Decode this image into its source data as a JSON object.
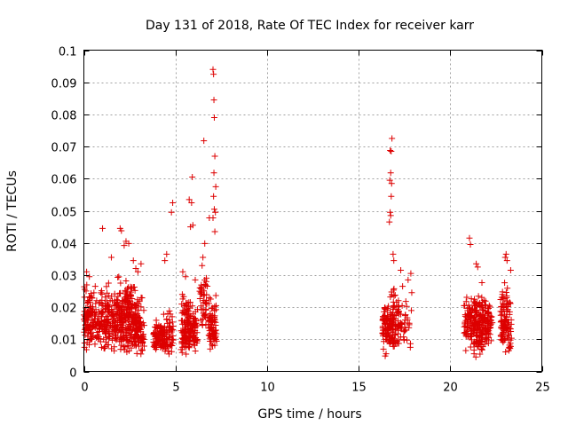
{
  "chart_data": {
    "type": "scatter",
    "title": "Day 131 of 2018, Rate Of TEC Index for receiver karr",
    "xlabel": "GPS time / hours",
    "ylabel": "ROTI / TECUs",
    "xlim": [
      0,
      25
    ],
    "ylim": [
      0,
      0.1
    ],
    "xticks": [
      0,
      5,
      10,
      15,
      20,
      25
    ],
    "yticks": [
      0,
      0.01,
      0.02,
      0.03,
      0.04,
      0.05,
      0.06,
      0.07,
      0.08,
      0.09,
      0.1
    ],
    "grid": true,
    "marker": "plus",
    "color": "#dd0000",
    "series": [
      {
        "name": "ROTI",
        "description": "Dense clusters of ROTI samples during 0-7.2 h, 16.3-17.9 h and 20.7-23.3 h UT; values mostly 0.005-0.03 TECU/min",
        "points": [
          [
            7.05,
            0.094
          ],
          [
            7.08,
            0.0925
          ],
          [
            7.1,
            0.0845
          ],
          [
            7.12,
            0.079
          ],
          [
            6.55,
            0.0718
          ],
          [
            7.15,
            0.067
          ],
          [
            5.92,
            0.0605
          ],
          [
            7.1,
            0.0618
          ],
          [
            7.2,
            0.0575
          ],
          [
            7.08,
            0.0545
          ],
          [
            5.75,
            0.0535
          ],
          [
            5.88,
            0.0525
          ],
          [
            4.85,
            0.0525
          ],
          [
            4.78,
            0.0495
          ],
          [
            7.12,
            0.0505
          ],
          [
            7.18,
            0.0495
          ],
          [
            7.05,
            0.0478
          ],
          [
            6.85,
            0.0478
          ],
          [
            5.95,
            0.0455
          ],
          [
            5.82,
            0.045
          ],
          [
            1.02,
            0.0445
          ],
          [
            1.98,
            0.0445
          ],
          [
            2.05,
            0.0438
          ],
          [
            7.15,
            0.0435
          ],
          [
            6.6,
            0.0398
          ],
          [
            2.3,
            0.0405
          ],
          [
            2.45,
            0.0398
          ],
          [
            2.2,
            0.0392
          ],
          [
            4.52,
            0.0365
          ],
          [
            4.42,
            0.0345
          ],
          [
            6.5,
            0.0355
          ],
          [
            1.5,
            0.0355
          ],
          [
            2.7,
            0.0345
          ],
          [
            3.12,
            0.0335
          ],
          [
            0.15,
            0.031
          ],
          [
            0.3,
            0.0295
          ],
          [
            0.62,
            0.0265
          ],
          [
            1.35,
            0.0275
          ],
          [
            2.95,
            0.031
          ],
          [
            5.55,
            0.0295
          ],
          [
            6.08,
            0.0285
          ],
          [
            5.4,
            0.031
          ],
          [
            16.82,
            0.0725
          ],
          [
            16.72,
            0.0688
          ],
          [
            16.78,
            0.0685
          ],
          [
            16.75,
            0.0618
          ],
          [
            16.7,
            0.0595
          ],
          [
            16.8,
            0.0585
          ],
          [
            16.78,
            0.0545
          ],
          [
            16.72,
            0.0495
          ],
          [
            16.75,
            0.0485
          ],
          [
            16.68,
            0.0465
          ],
          [
            16.88,
            0.0365
          ],
          [
            16.92,
            0.0345
          ],
          [
            17.3,
            0.0315
          ],
          [
            17.85,
            0.0305
          ],
          [
            17.7,
            0.0285
          ],
          [
            17.4,
            0.0265
          ],
          [
            17.9,
            0.0245
          ],
          [
            16.5,
            0.0055
          ],
          [
            16.45,
            0.0048
          ],
          [
            17.82,
            0.0075
          ],
          [
            21.05,
            0.0415
          ],
          [
            21.1,
            0.0395
          ],
          [
            21.42,
            0.0335
          ],
          [
            21.5,
            0.0325
          ],
          [
            23.05,
            0.0365
          ],
          [
            23.1,
            0.0345
          ],
          [
            23.0,
            0.0355
          ],
          [
            23.3,
            0.0315
          ],
          [
            21.3,
            0.0055
          ],
          [
            21.4,
            0.0045
          ],
          [
            20.85,
            0.0065
          ],
          [
            23.2,
            0.0065
          ]
        ],
        "clusters": [
          {
            "x_range": [
              0.0,
              0.45
            ],
            "y_range": [
              0.006,
              0.031
            ],
            "count": 90
          },
          {
            "x_range": [
              0.45,
              1.05
            ],
            "y_range": [
              0.006,
              0.029
            ],
            "count": 80
          },
          {
            "x_range": [
              1.05,
              1.7
            ],
            "y_range": [
              0.006,
              0.029
            ],
            "count": 100
          },
          {
            "x_range": [
              1.7,
              2.3
            ],
            "y_range": [
              0.006,
              0.034
            ],
            "count": 130
          },
          {
            "x_range": [
              2.3,
              2.85
            ],
            "y_range": [
              0.004,
              0.036
            ],
            "count": 140
          },
          {
            "x_range": [
              2.85,
              3.3
            ],
            "y_range": [
              0.004,
              0.026
            ],
            "count": 80
          },
          {
            "x_range": [
              3.8,
              4.25
            ],
            "y_range": [
              0.006,
              0.018
            ],
            "count": 70
          },
          {
            "x_range": [
              4.25,
              4.9
            ],
            "y_range": [
              0.005,
              0.022
            ],
            "count": 80
          },
          {
            "x_range": [
              5.3,
              5.8
            ],
            "y_range": [
              0.004,
              0.029
            ],
            "count": 110
          },
          {
            "x_range": [
              5.8,
              6.2
            ],
            "y_range": [
              0.005,
              0.024
            ],
            "count": 60
          },
          {
            "x_range": [
              6.3,
              6.75
            ],
            "y_range": [
              0.012,
              0.035
            ],
            "count": 45
          },
          {
            "x_range": [
              6.8,
              7.25
            ],
            "y_range": [
              0.006,
              0.026
            ],
            "count": 75
          },
          {
            "x_range": [
              16.3,
              16.75
            ],
            "y_range": [
              0.006,
              0.026
            ],
            "count": 80
          },
          {
            "x_range": [
              16.75,
              17.2
            ],
            "y_range": [
              0.006,
              0.03
            ],
            "count": 80
          },
          {
            "x_range": [
              17.2,
              17.9
            ],
            "y_range": [
              0.006,
              0.027
            ],
            "count": 35
          },
          {
            "x_range": [
              20.75,
              21.3
            ],
            "y_range": [
              0.007,
              0.028
            ],
            "count": 80
          },
          {
            "x_range": [
              21.3,
              21.8
            ],
            "y_range": [
              0.004,
              0.031
            ],
            "count": 130
          },
          {
            "x_range": [
              21.8,
              22.3
            ],
            "y_range": [
              0.006,
              0.027
            ],
            "count": 70
          },
          {
            "x_range": [
              22.75,
              23.35
            ],
            "y_range": [
              0.005,
              0.031
            ],
            "count": 110
          }
        ]
      }
    ]
  }
}
